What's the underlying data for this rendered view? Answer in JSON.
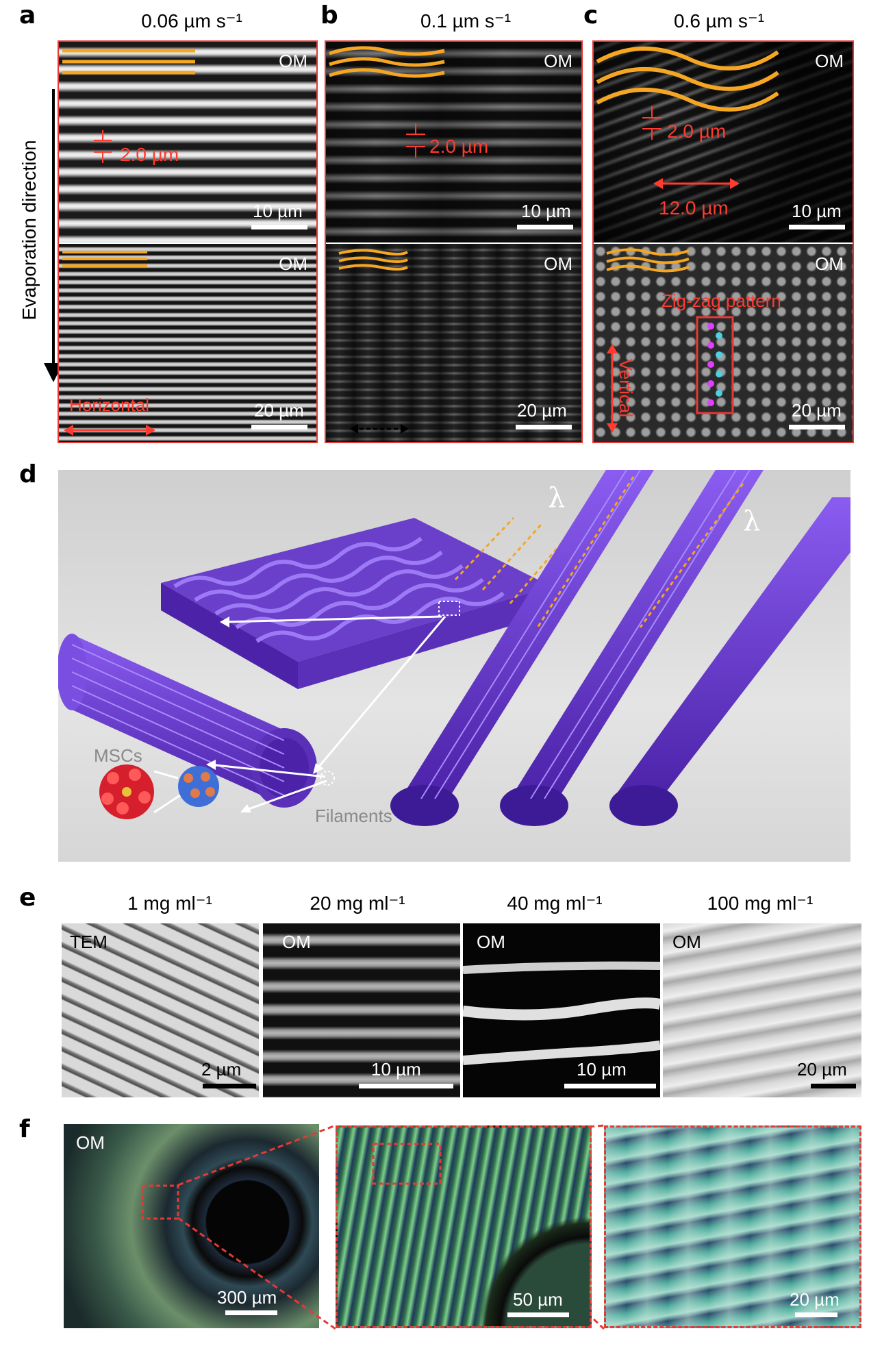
{
  "labels": {
    "a": "a",
    "b": "b",
    "c": "c",
    "d": "d",
    "e": "e",
    "f": "f"
  },
  "row_a": {
    "title_a": "0.06 µm s⁻¹",
    "title_b": "0.1 µm s⁻¹",
    "title_c": "0.6 µm s⁻¹",
    "om": "OM",
    "evap": "Evaporation direction",
    "spacing": "2.0 µm",
    "period": "12.0 µm",
    "scale10": "10 µm",
    "scale20": "20 µm",
    "horizontal": "Horizontal",
    "vertical": "Vertical",
    "zigzag": "Zig-zag pattern"
  },
  "row_d": {
    "lambda": "λ",
    "mscs": "MSCs",
    "filaments": "Filaments"
  },
  "row_e": {
    "titles": [
      "1 mg ml⁻¹",
      "20 mg ml⁻¹",
      "40 mg ml⁻¹",
      "100 mg ml⁻¹"
    ],
    "modes": [
      "TEM",
      "OM",
      "OM",
      "OM"
    ],
    "scales": [
      "2 µm",
      "10 µm",
      "10 µm",
      "20 µm"
    ]
  },
  "row_f": {
    "om": "OM",
    "scales": [
      "300 µm",
      "50 µm",
      "20 µm"
    ]
  },
  "colors": {
    "accent_red": "#ff3b30",
    "orange": "#f5a623",
    "purple": "#6a3fc9"
  }
}
